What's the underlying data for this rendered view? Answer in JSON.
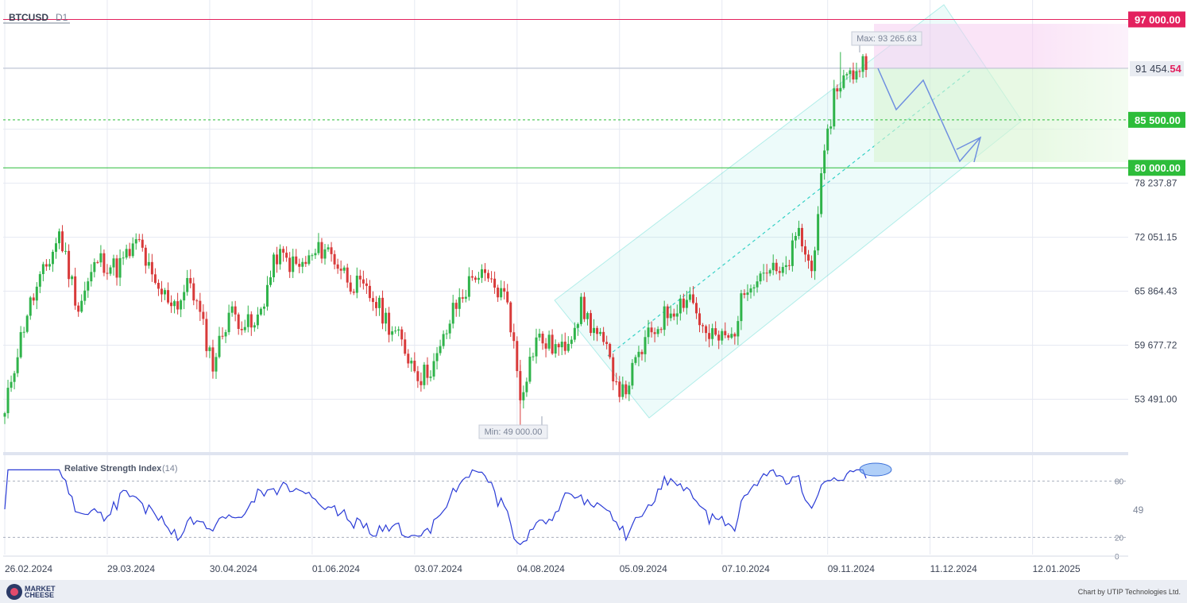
{
  "header": {
    "symbol": "BTCUSD",
    "timeframe": "D1"
  },
  "price_axis": {
    "ticks": [
      "78 237.87",
      "72 051.15",
      "65 864.43",
      "59 677.72",
      "53 491.00"
    ],
    "current_price_main": "91 454.",
    "current_price_decimals": "54"
  },
  "date_axis": [
    "26.02.2024",
    "29.03.2024",
    "30.04.2024",
    "01.06.2024",
    "03.07.2024",
    "04.08.2024",
    "05.09.2024",
    "07.10.2024",
    "09.11.2024",
    "11.12.2024",
    "12.01.2025"
  ],
  "levels": [
    {
      "label": "97 000.00",
      "value": 97000,
      "color": "#e3215e",
      "style": "solid"
    },
    {
      "label": "85 500.00",
      "value": 85500,
      "color": "#2dbd3a",
      "style": "dashed"
    },
    {
      "label": "80 000.00",
      "value": 80000,
      "color": "#2dbd3a",
      "style": "solid"
    }
  ],
  "annotations": {
    "max_label": "Max: 93 265.63",
    "min_label": "Min: 49 000.00"
  },
  "rsi": {
    "title": "Relative Strength Index",
    "period": "(14)",
    "ticks": [
      "80",
      "49",
      "20",
      "0"
    ]
  },
  "footer": {
    "logo_line1": "MARKET",
    "logo_line2": "CHEESE",
    "credit": "Chart by UTIP Technologies Ltd."
  },
  "chart_data": {
    "type": "candlestick",
    "symbol": "BTCUSD",
    "timeframe": "D1",
    "date_range": [
      "26.02.2024",
      "21.11.2024"
    ],
    "ylim": [
      47800,
      98500
    ],
    "max": 93265.63,
    "min": 49000.0,
    "current_price": 91454.54,
    "close_path": [
      [
        "26.02.2024",
        51500
      ],
      [
        "28.02.2024",
        56000
      ],
      [
        "04.03.2024",
        63500
      ],
      [
        "11.03.2024",
        69500
      ],
      [
        "14.03.2024",
        72500
      ],
      [
        "20.03.2024",
        64000
      ],
      [
        "26.03.2024",
        69500
      ],
      [
        "01.04.2024",
        68500
      ],
      [
        "08.04.2024",
        71500
      ],
      [
        "13.04.2024",
        66000
      ],
      [
        "20.04.2024",
        64500
      ],
      [
        "24.04.2024",
        67000
      ],
      [
        "01.05.2024",
        57500
      ],
      [
        "06.05.2024",
        63500
      ],
      [
        "14.05.2024",
        61500
      ],
      [
        "21.05.2024",
        70000
      ],
      [
        "28.05.2024",
        68500
      ],
      [
        "05.06.2024",
        71000
      ],
      [
        "13.06.2024",
        67000
      ],
      [
        "20.06.2024",
        65000
      ],
      [
        "27.06.2024",
        61000
      ],
      [
        "05.07.2024",
        56000
      ],
      [
        "10.07.2024",
        58000
      ],
      [
        "15.07.2024",
        63500
      ],
      [
        "22.07.2024",
        68000
      ],
      [
        "01.08.2024",
        65000
      ],
      [
        "05.08.2024",
        54000
      ],
      [
        "10.08.2024",
        60500
      ],
      [
        "18.08.2024",
        59000
      ],
      [
        "24.08.2024",
        64000
      ],
      [
        "31.08.2024",
        59500
      ],
      [
        "06.09.2024",
        54000
      ],
      [
        "13.09.2024",
        60000
      ],
      [
        "20.09.2024",
        63500
      ],
      [
        "27.09.2024",
        65500
      ],
      [
        "02.10.2024",
        60500
      ],
      [
        "10.10.2024",
        60500
      ],
      [
        "15.10.2024",
        67000
      ],
      [
        "21.10.2024",
        68500
      ],
      [
        "26.10.2024",
        67500
      ],
      [
        "31.10.2024",
        72500
      ],
      [
        "04.11.2024",
        68000
      ],
      [
        "06.11.2024",
        75500
      ],
      [
        "11.11.2024",
        88500
      ],
      [
        "13.11.2024",
        90000
      ],
      [
        "16.11.2024",
        90500
      ],
      [
        "21.11.2024",
        92500
      ]
    ],
    "rsi_period": 14,
    "rsi_levels": [
      80,
      20
    ],
    "rsi_ylim": [
      0,
      100
    ]
  }
}
